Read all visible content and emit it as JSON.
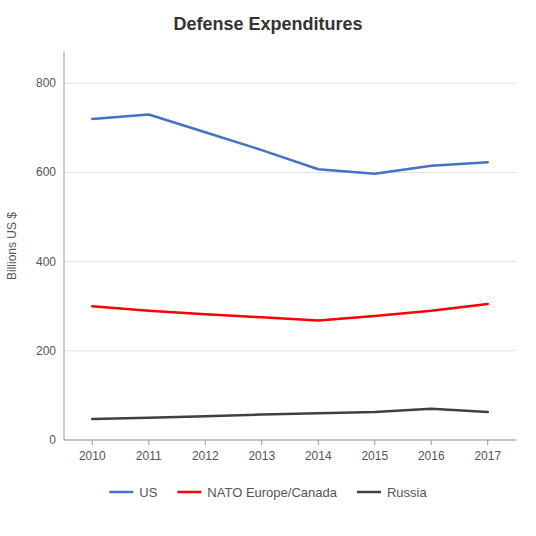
{
  "chart_data": {
    "type": "line",
    "title": "Defense Expenditures",
    "ylabel": "Billions US $",
    "x": [
      2010,
      2011,
      2012,
      2013,
      2014,
      2015,
      2016,
      2017
    ],
    "xlim": [
      2009.5,
      2017.5
    ],
    "xticks": [
      2010,
      2011,
      2012,
      2013,
      2014,
      2015,
      2016,
      2017
    ],
    "series": [
      {
        "name": "US",
        "color": "#4472C4",
        "values": [
          720,
          730,
          690,
          650,
          607,
          597,
          615,
          623
        ]
      },
      {
        "name": "NATO Europe/Canada",
        "color": "#FF0000",
        "values": [
          300,
          290,
          282,
          275,
          268,
          278,
          290,
          305
        ]
      },
      {
        "name": "Russia",
        "color": "#404040",
        "values": [
          47,
          50,
          53,
          57,
          60,
          63,
          70,
          63
        ]
      }
    ],
    "ylim": [
      0,
      870
    ],
    "yticks": [
      0,
      200,
      400,
      600,
      800
    ],
    "grid": true,
    "legend": "bottom"
  }
}
